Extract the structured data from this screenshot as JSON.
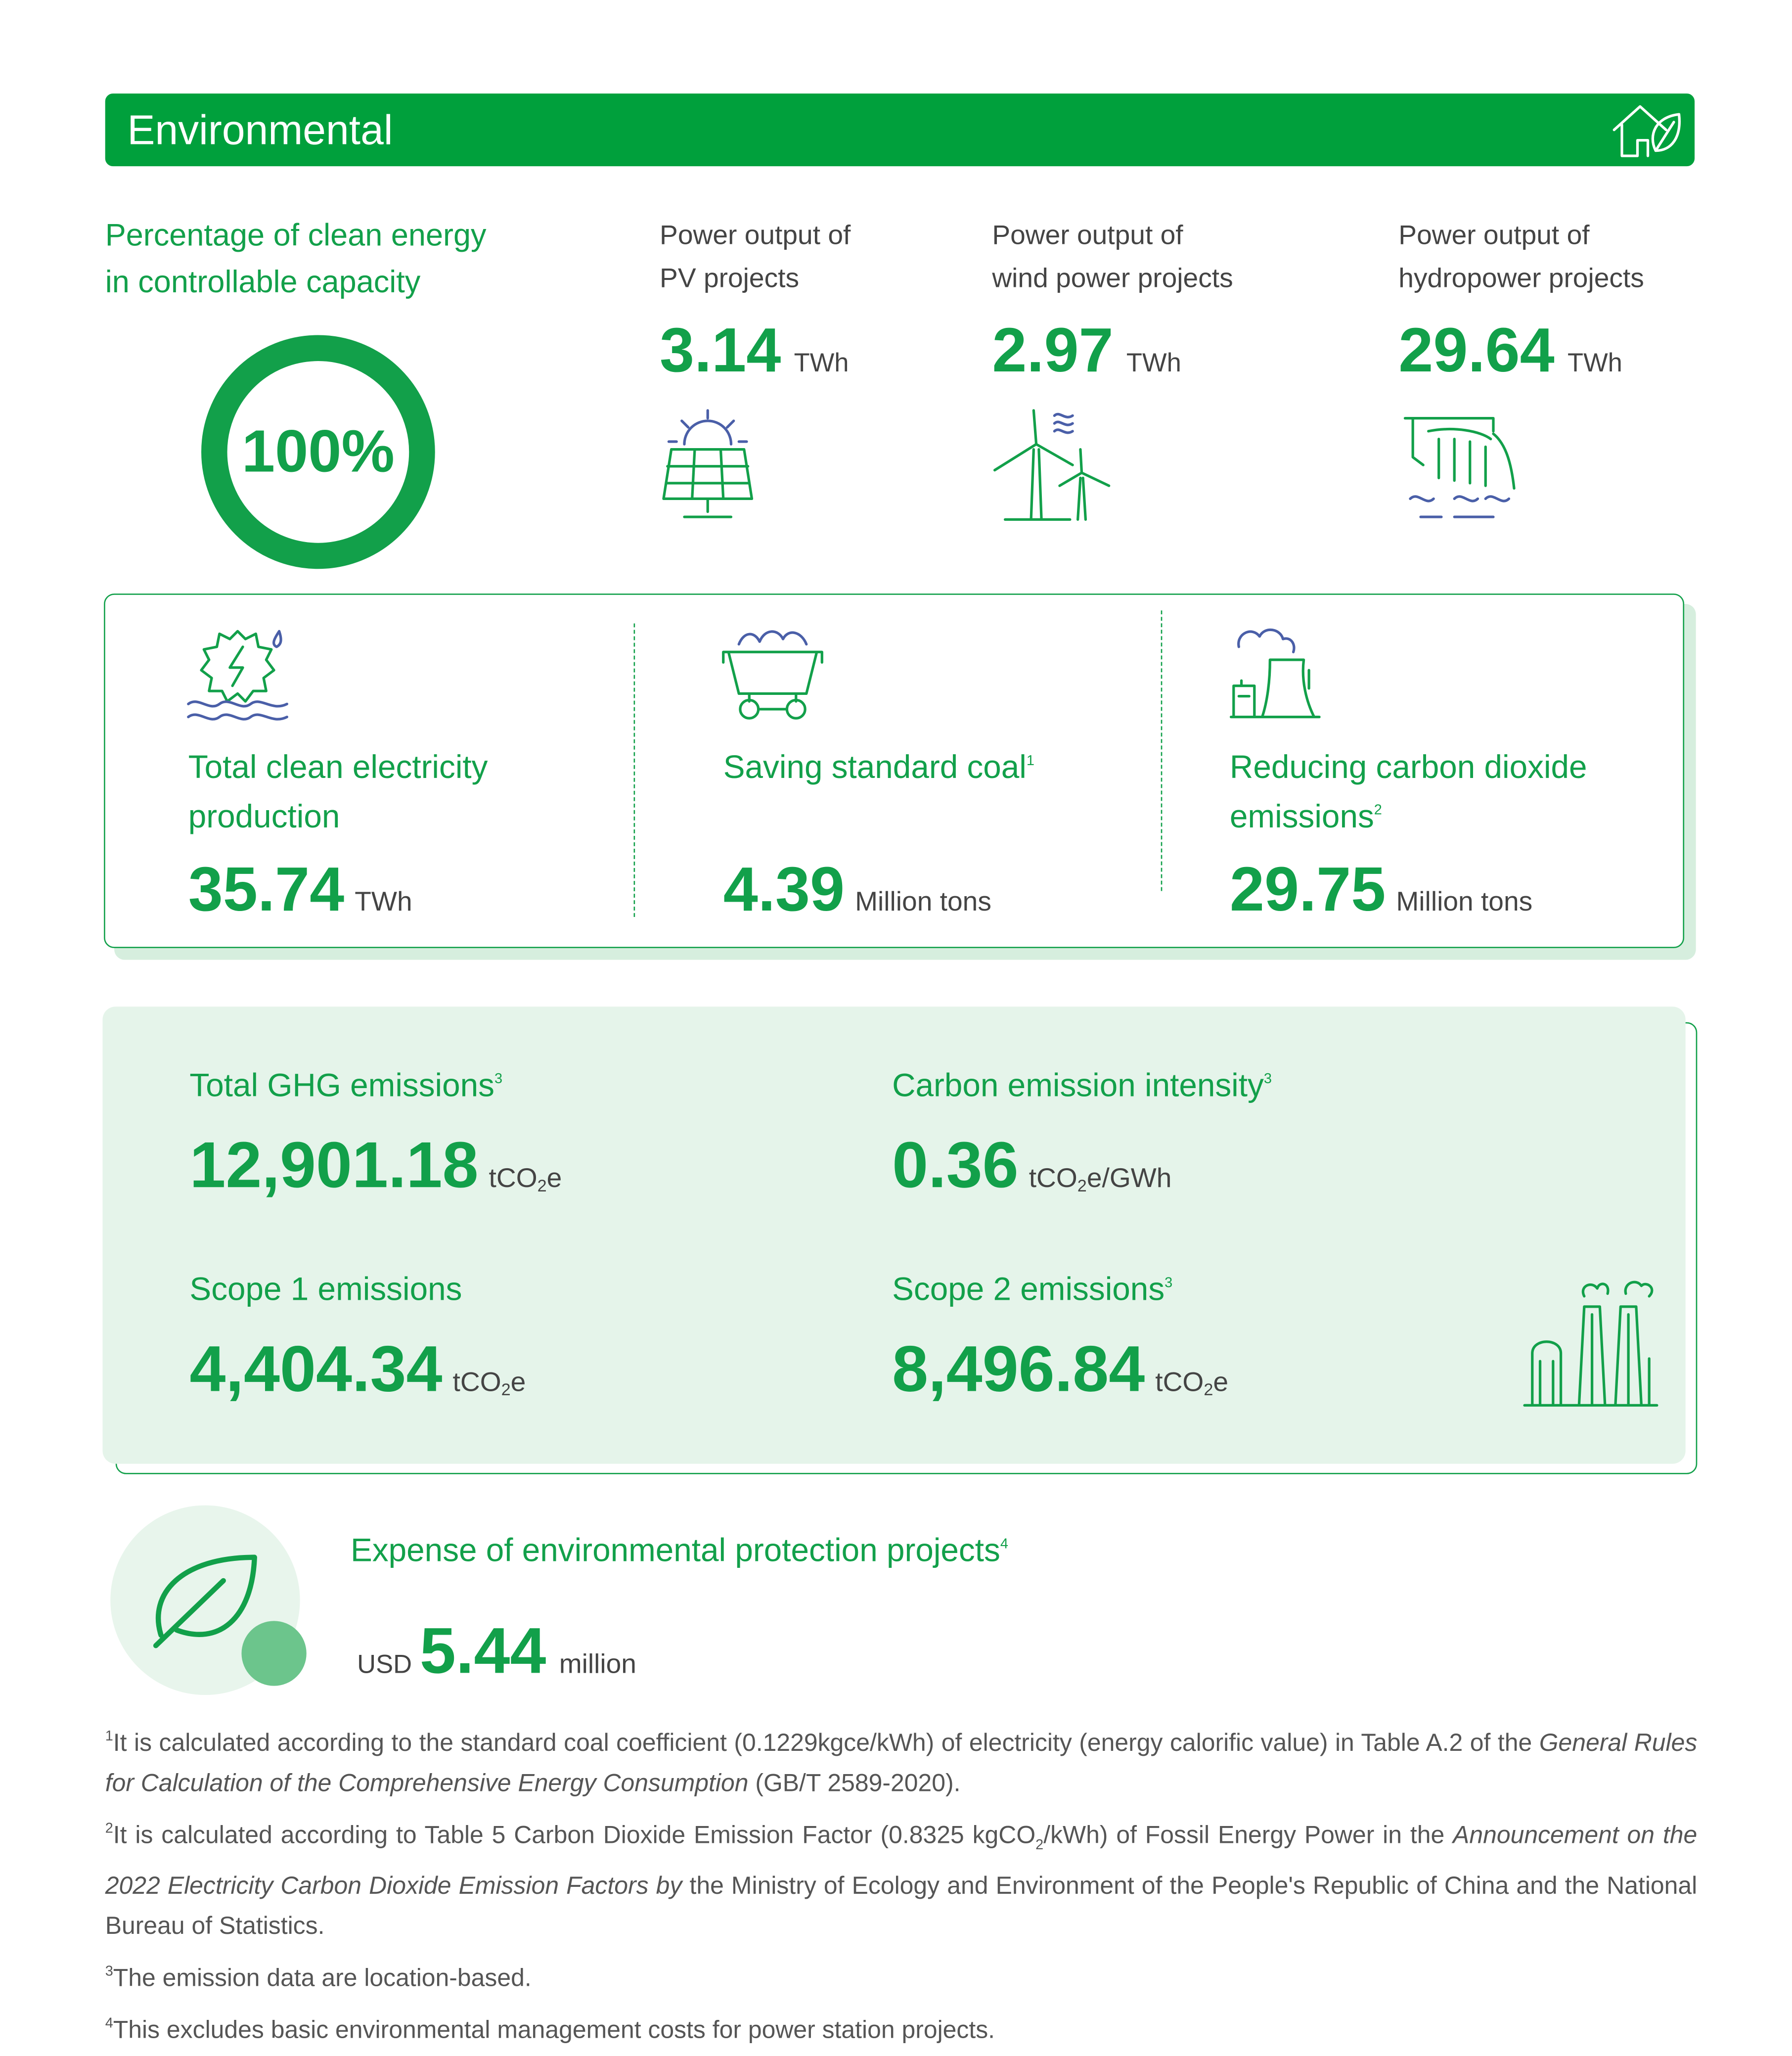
{
  "header": {
    "title": "Environmental"
  },
  "clean_share": {
    "label_lines": [
      "Percentage of clean energy",
      "in controllable capacity"
    ],
    "value": "100%"
  },
  "power_outputs": [
    {
      "label_lines": [
        "Power output of",
        "PV projects"
      ],
      "value": "3.14",
      "unit": "TWh"
    },
    {
      "label_lines": [
        "Power output of",
        "wind power projects"
      ],
      "value": "2.97",
      "unit": "TWh"
    },
    {
      "label_lines": [
        "Power output of",
        "hydropower projects"
      ],
      "value": "29.64",
      "unit": "TWh"
    }
  ],
  "totals": [
    {
      "label_lines": [
        "Total clean electricity",
        "production"
      ],
      "value": "35.74",
      "unit": "TWh"
    },
    {
      "label_lines": [
        "Saving standard coal"
      ],
      "footnote": "1",
      "value": "4.39",
      "unit": "Million tons"
    },
    {
      "label_lines": [
        "Reducing carbon dioxide",
        "emissions"
      ],
      "footnote": "2",
      "value": "29.75",
      "unit": "Million tons"
    }
  ],
  "emissions": [
    {
      "label": "Total GHG emissions",
      "footnote": "3",
      "value": "12,901.18",
      "unit": {
        "text": "tCO",
        "sub": "2",
        "tail": "e"
      }
    },
    {
      "label": "Carbon emission intensity",
      "footnote": "3",
      "value": "0.36",
      "unit": {
        "text": "tCO",
        "sub": "2",
        "tail": "e/GWh"
      }
    },
    {
      "label": "Scope 1 emissions",
      "value": "4,404.34",
      "unit": {
        "text": "tCO",
        "sub": "2",
        "tail": "e"
      }
    },
    {
      "label": "Scope 2 emissions",
      "footnote": "3",
      "value": "8,496.84",
      "unit": {
        "text": "tCO",
        "sub": "2",
        "tail": "e"
      }
    }
  ],
  "expense": {
    "label": "Expense of environmental protection projects",
    "footnote": "4",
    "currency": "USD",
    "value": "5.44",
    "unit": "million"
  },
  "footnotes": [
    {
      "mark": "1",
      "segments": [
        {
          "text": "It is calculated according to the standard coal coefficient (0.1229kgce/kWh) of electricity (energy calorific value) in Table A.2 of the ",
          "style": "normal"
        },
        {
          "text": "General Rules for Calculation of the Comprehensive Energy Consumption",
          "style": "italic"
        },
        {
          "text": " (GB/T 2589-2020).",
          "style": "normal"
        }
      ]
    },
    {
      "mark": "2",
      "segments": [
        {
          "text": "It is calculated according to Table 5 Carbon Dioxide Emission Factor (0.8325 kgCO",
          "style": "normal"
        },
        {
          "text": "2",
          "style": "sub"
        },
        {
          "text": "/kWh) of Fossil Energy Power in the ",
          "style": "normal"
        },
        {
          "text": "Announcement on the 2022 Electricity Carbon Dioxide Emission Factors by",
          "style": "italic"
        },
        {
          "text": " the Ministry of Ecology and Environment of the People's Republic of China and the National Bureau of Statistics.",
          "style": "normal"
        }
      ]
    },
    {
      "mark": "3",
      "segments": [
        {
          "text": "The emission data are location-based.",
          "style": "normal"
        }
      ]
    },
    {
      "mark": "4",
      "segments": [
        {
          "text": "This excludes basic environmental management costs for power station projects.",
          "style": "normal"
        }
      ]
    }
  ]
}
